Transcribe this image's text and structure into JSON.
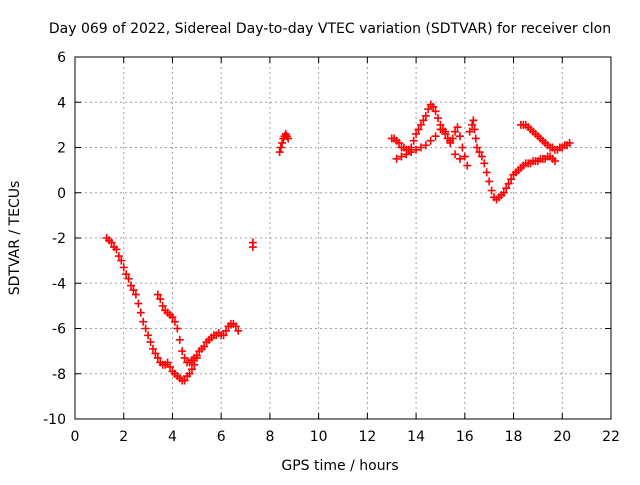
{
  "chart_data": {
    "type": "scatter",
    "title": "Day 069 of 2022, Sidereal Day-to-day VTEC variation (SDTVAR) for receiver clon",
    "xlabel": "GPS time / hours",
    "ylabel": "SDTVAR / TECUs",
    "xlim": [
      0,
      22
    ],
    "ylim": [
      -10,
      6
    ],
    "xticks": [
      0,
      2,
      4,
      6,
      8,
      10,
      12,
      14,
      16,
      18,
      20,
      22
    ],
    "yticks": [
      -10,
      -8,
      -6,
      -4,
      -2,
      0,
      2,
      4,
      6
    ],
    "grid": true,
    "marker": "+",
    "series": [
      {
        "name": "SDTVAR",
        "color": "#ff0000",
        "points": [
          [
            1.3,
            -2.0
          ],
          [
            1.4,
            -2.1
          ],
          [
            1.5,
            -2.2
          ],
          [
            1.6,
            -2.4
          ],
          [
            1.7,
            -2.5
          ],
          [
            1.8,
            -2.8
          ],
          [
            1.9,
            -3.0
          ],
          [
            2.0,
            -3.3
          ],
          [
            2.1,
            -3.6
          ],
          [
            2.2,
            -3.8
          ],
          [
            2.3,
            -4.1
          ],
          [
            2.4,
            -4.3
          ],
          [
            2.5,
            -4.5
          ],
          [
            2.6,
            -4.9
          ],
          [
            2.7,
            -5.3
          ],
          [
            2.8,
            -5.7
          ],
          [
            2.9,
            -6.0
          ],
          [
            3.0,
            -6.3
          ],
          [
            3.1,
            -6.6
          ],
          [
            3.2,
            -6.9
          ],
          [
            3.3,
            -7.1
          ],
          [
            3.4,
            -7.3
          ],
          [
            3.5,
            -7.5
          ],
          [
            3.6,
            -7.6
          ],
          [
            3.7,
            -7.6
          ],
          [
            3.8,
            -7.5
          ],
          [
            3.9,
            -7.7
          ],
          [
            4.0,
            -7.9
          ],
          [
            4.1,
            -8.0
          ],
          [
            4.2,
            -8.1
          ],
          [
            4.3,
            -8.2
          ],
          [
            4.4,
            -8.3
          ],
          [
            4.5,
            -8.3
          ],
          [
            4.6,
            -8.1
          ],
          [
            4.7,
            -8.0
          ],
          [
            4.8,
            -7.8
          ],
          [
            4.9,
            -7.6
          ],
          [
            5.0,
            -7.3
          ],
          [
            3.4,
            -4.5
          ],
          [
            3.5,
            -4.7
          ],
          [
            3.6,
            -5.0
          ],
          [
            3.7,
            -5.2
          ],
          [
            3.8,
            -5.3
          ],
          [
            3.9,
            -5.4
          ],
          [
            4.0,
            -5.5
          ],
          [
            4.1,
            -5.7
          ],
          [
            4.2,
            -6.0
          ],
          [
            4.3,
            -6.5
          ],
          [
            4.4,
            -7.0
          ],
          [
            4.5,
            -7.3
          ],
          [
            4.6,
            -7.5
          ],
          [
            4.7,
            -7.5
          ],
          [
            4.8,
            -7.4
          ],
          [
            4.9,
            -7.3
          ],
          [
            5.0,
            -7.2
          ],
          [
            5.1,
            -7.0
          ],
          [
            5.2,
            -6.9
          ],
          [
            5.3,
            -6.8
          ],
          [
            5.4,
            -6.6
          ],
          [
            5.5,
            -6.5
          ],
          [
            5.6,
            -6.4
          ],
          [
            5.7,
            -6.3
          ],
          [
            5.8,
            -6.3
          ],
          [
            5.9,
            -6.2
          ],
          [
            6.0,
            -6.3
          ],
          [
            6.1,
            -6.3
          ],
          [
            6.2,
            -6.1
          ],
          [
            6.3,
            -5.9
          ],
          [
            6.4,
            -5.8
          ],
          [
            6.5,
            -5.8
          ],
          [
            6.6,
            -5.9
          ],
          [
            6.7,
            -6.1
          ],
          [
            7.3,
            -2.4
          ],
          [
            7.3,
            -2.2
          ],
          [
            8.4,
            1.8
          ],
          [
            8.45,
            2.0
          ],
          [
            8.5,
            2.2
          ],
          [
            8.55,
            2.4
          ],
          [
            8.6,
            2.5
          ],
          [
            8.65,
            2.6
          ],
          [
            8.7,
            2.5
          ],
          [
            8.75,
            2.4
          ],
          [
            13.0,
            2.4
          ],
          [
            13.1,
            2.4
          ],
          [
            13.2,
            2.3
          ],
          [
            13.3,
            2.2
          ],
          [
            13.4,
            2.0
          ],
          [
            13.5,
            2.0
          ],
          [
            13.6,
            1.9
          ],
          [
            13.7,
            1.9
          ],
          [
            13.8,
            2.0
          ],
          [
            13.9,
            2.3
          ],
          [
            14.0,
            2.6
          ],
          [
            14.1,
            2.8
          ],
          [
            14.2,
            3.0
          ],
          [
            14.3,
            3.2
          ],
          [
            14.4,
            3.4
          ],
          [
            14.5,
            3.7
          ],
          [
            14.6,
            3.9
          ],
          [
            14.7,
            3.8
          ],
          [
            14.8,
            3.6
          ],
          [
            14.9,
            3.3
          ],
          [
            15.0,
            3.0
          ],
          [
            15.1,
            2.8
          ],
          [
            15.2,
            2.6
          ],
          [
            15.3,
            2.4
          ],
          [
            15.4,
            2.3
          ],
          [
            15.5,
            2.4
          ],
          [
            15.6,
            2.7
          ],
          [
            15.7,
            2.9
          ],
          [
            15.8,
            2.5
          ],
          [
            15.9,
            2.0
          ],
          [
            16.0,
            1.6
          ],
          [
            16.1,
            1.2
          ],
          [
            13.2,
            1.5
          ],
          [
            13.4,
            1.6
          ],
          [
            13.6,
            1.7
          ],
          [
            13.8,
            1.8
          ],
          [
            14.0,
            1.9
          ],
          [
            14.2,
            2.0
          ],
          [
            14.4,
            2.1
          ],
          [
            14.6,
            2.3
          ],
          [
            14.8,
            2.5
          ],
          [
            15.0,
            2.8
          ],
          [
            15.2,
            2.7
          ],
          [
            15.4,
            2.2
          ],
          [
            15.6,
            1.7
          ],
          [
            15.8,
            1.5
          ],
          [
            16.2,
            2.7
          ],
          [
            16.3,
            3.0
          ],
          [
            16.35,
            3.2
          ],
          [
            16.4,
            2.8
          ],
          [
            16.45,
            2.4
          ],
          [
            16.5,
            2.0
          ],
          [
            16.6,
            1.8
          ],
          [
            16.7,
            1.6
          ],
          [
            16.8,
            1.3
          ],
          [
            16.9,
            0.9
          ],
          [
            17.0,
            0.5
          ],
          [
            17.1,
            0.1
          ],
          [
            17.2,
            -0.2
          ],
          [
            17.3,
            -0.3
          ],
          [
            17.4,
            -0.2
          ],
          [
            17.5,
            -0.1
          ],
          [
            17.6,
            0.0
          ],
          [
            17.7,
            0.2
          ],
          [
            17.8,
            0.4
          ],
          [
            17.9,
            0.6
          ],
          [
            18.0,
            0.8
          ],
          [
            18.1,
            0.9
          ],
          [
            18.2,
            1.0
          ],
          [
            18.3,
            1.1
          ],
          [
            18.4,
            1.2
          ],
          [
            18.5,
            1.3
          ],
          [
            18.6,
            1.3
          ],
          [
            18.7,
            1.3
          ],
          [
            18.8,
            1.4
          ],
          [
            18.9,
            1.4
          ],
          [
            19.0,
            1.4
          ],
          [
            19.1,
            1.5
          ],
          [
            19.2,
            1.5
          ],
          [
            19.3,
            1.5
          ],
          [
            19.4,
            1.6
          ],
          [
            19.5,
            1.6
          ],
          [
            19.6,
            1.5
          ],
          [
            19.7,
            1.4
          ],
          [
            18.3,
            3.0
          ],
          [
            18.4,
            3.0
          ],
          [
            18.5,
            3.0
          ],
          [
            18.6,
            2.9
          ],
          [
            18.7,
            2.8
          ],
          [
            18.8,
            2.7
          ],
          [
            18.9,
            2.6
          ],
          [
            19.0,
            2.5
          ],
          [
            19.1,
            2.4
          ],
          [
            19.2,
            2.3
          ],
          [
            19.3,
            2.2
          ],
          [
            19.4,
            2.1
          ],
          [
            19.5,
            2.0
          ],
          [
            19.6,
            2.0
          ],
          [
            19.7,
            1.9
          ],
          [
            19.8,
            1.9
          ],
          [
            19.9,
            2.0
          ],
          [
            20.0,
            2.0
          ],
          [
            20.1,
            2.1
          ],
          [
            20.2,
            2.1
          ],
          [
            20.3,
            2.2
          ]
        ]
      }
    ]
  }
}
